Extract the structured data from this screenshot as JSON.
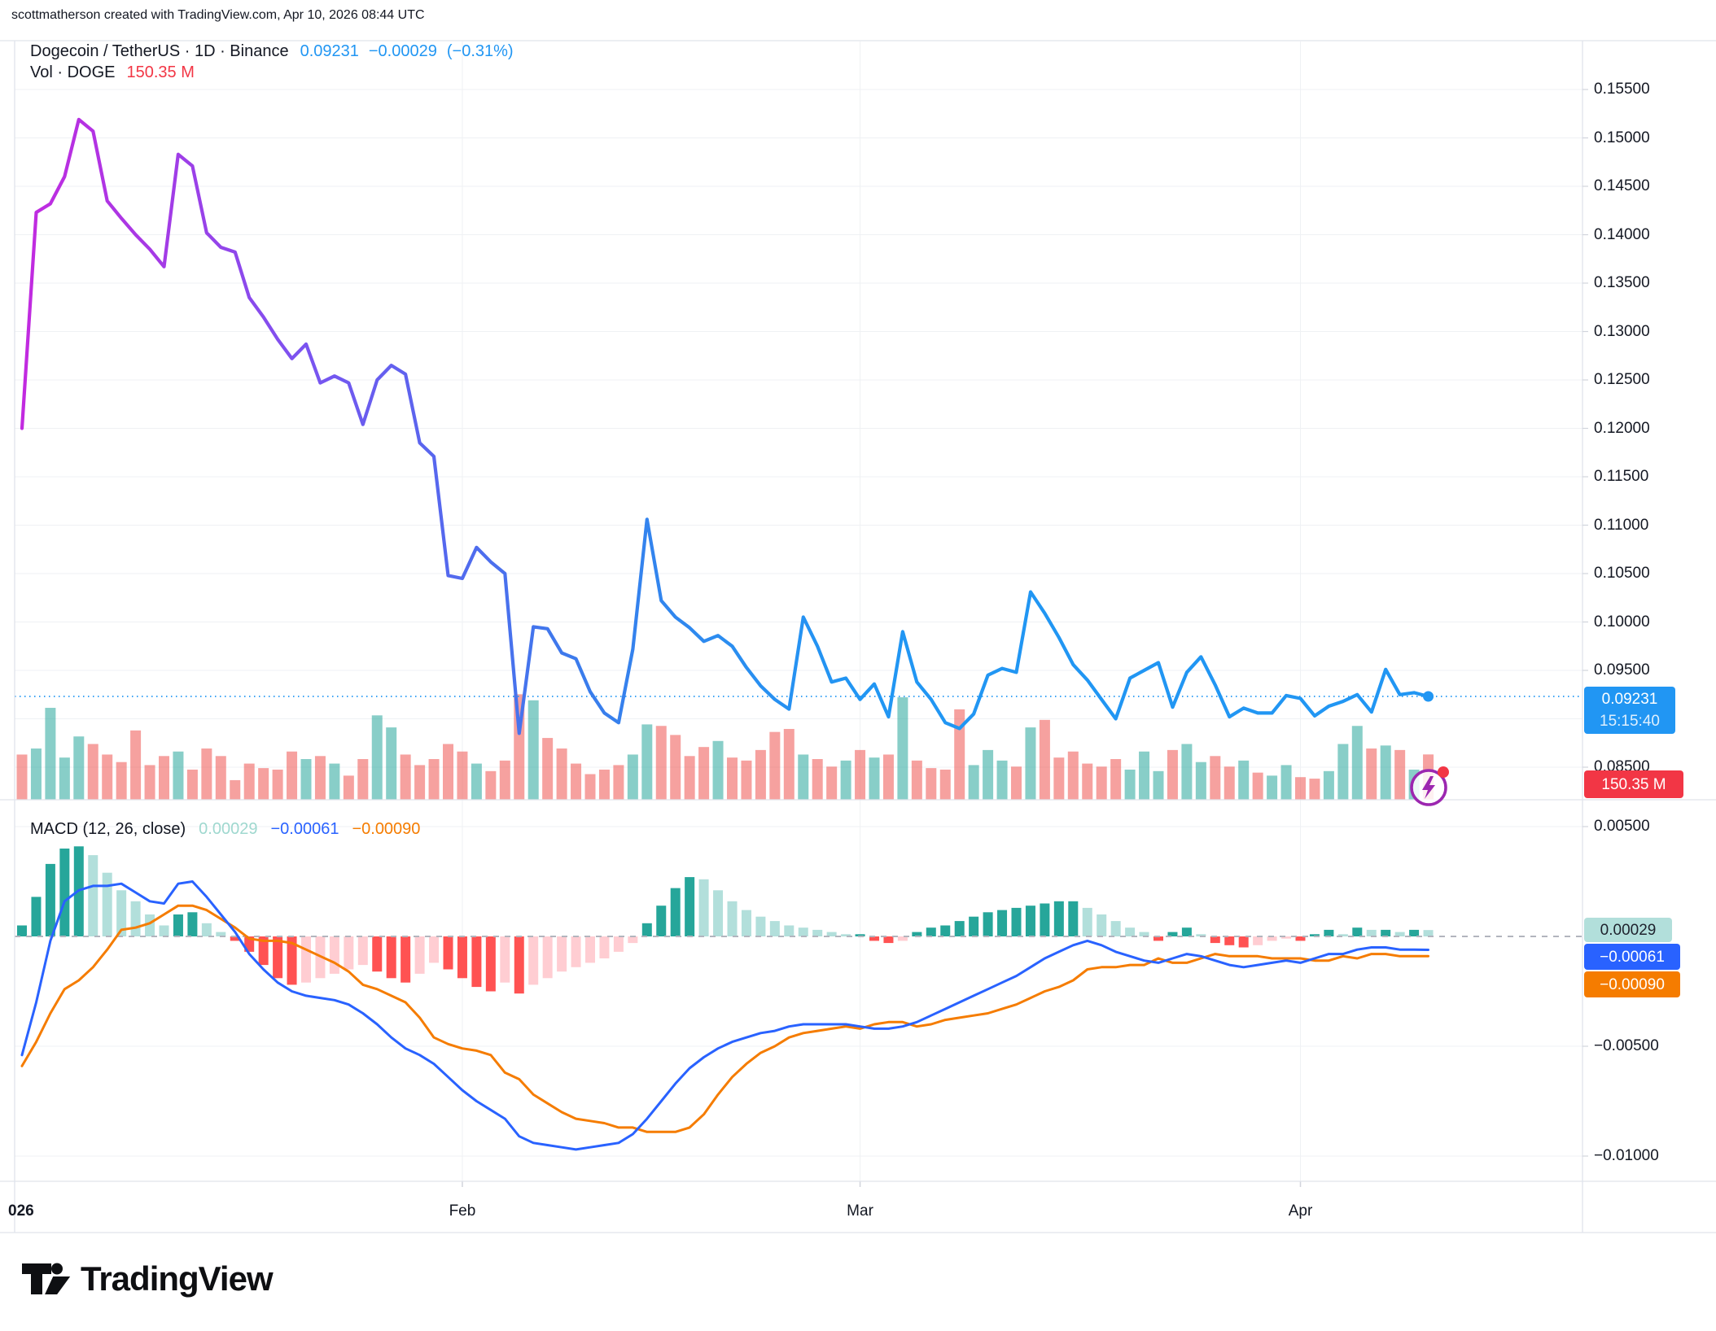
{
  "attribution": "scottmatherson created with TradingView.com, Apr 10, 2026 08:44 UTC",
  "header": {
    "title": "Dogecoin / TetherUS · 1D · Binance",
    "price": "0.09231",
    "change": "−0.00029",
    "change_pct": "(−0.31%)",
    "vol_label": "Vol · DOGE",
    "vol_value": "150.35 M"
  },
  "macd_legend": {
    "title": "MACD (12, 26, close)",
    "hist_value": "0.00029",
    "macd_value": "−0.00061",
    "signal_value": "−0.00090"
  },
  "price_scale": {
    "labels": [
      {
        "text": "0.15500",
        "v": 0.155
      },
      {
        "text": "0.15000",
        "v": 0.15
      },
      {
        "text": "0.14500",
        "v": 0.145
      },
      {
        "text": "0.14000",
        "v": 0.14
      },
      {
        "text": "0.13500",
        "v": 0.135
      },
      {
        "text": "0.13000",
        "v": 0.13
      },
      {
        "text": "0.12500",
        "v": 0.125
      },
      {
        "text": "0.12000",
        "v": 0.12
      },
      {
        "text": "0.11500",
        "v": 0.115
      },
      {
        "text": "0.11000",
        "v": 0.11
      },
      {
        "text": "0.10500",
        "v": 0.105
      },
      {
        "text": "0.10000",
        "v": 0.1
      },
      {
        "text": "0.09500",
        "v": 0.095
      },
      {
        "text": "0.08500",
        "v": 0.085
      }
    ],
    "badge": {
      "price": "0.09231",
      "countdown": "15:15:40"
    },
    "vol_badge": "150.35 M"
  },
  "macd_scale": {
    "labels": [
      {
        "text": "0.00500",
        "v": 0.005
      },
      {
        "text": "−0.00500",
        "v": -0.005
      },
      {
        "text": "−0.01000",
        "v": -0.01
      }
    ],
    "badges": {
      "hist": "0.00029",
      "macd": "−0.00061",
      "signal": "−0.00090"
    }
  },
  "time_axis": {
    "labels": [
      {
        "text": "026",
        "day": 0,
        "edge": true
      },
      {
        "text": "Feb",
        "day": 31
      },
      {
        "text": "Mar",
        "day": 59
      },
      {
        "text": "Apr",
        "day": 90
      }
    ]
  },
  "logo": {
    "text": "TradingView"
  },
  "colors": {
    "accent_blue": "#2196F3",
    "legend_red": "#F23645",
    "macd_line": "#2962FF",
    "signal_line": "#F57C00",
    "hist_grow_above": "#26A69A",
    "hist_fall_above": "#B2DFDB",
    "hist_fall_below": "#FF5252",
    "hist_grow_below": "#FFCDD2",
    "vol_up": "rgba(38,166,154,0.55)",
    "vol_down": "rgba(239,83,80,0.55)",
    "grid": "#EFF1F4",
    "border": "#E0E3EB",
    "zero_dash": "#B2B5BE",
    "line_gradient": [
      "#C22AE0",
      "#A43BE6",
      "#7B53F0",
      "#5568EE",
      "#3A7CEC",
      "#2B8DF0",
      "#2196F3"
    ],
    "watermark_purple": "#9C27B0",
    "watermark_red": "#F23645"
  },
  "chart_data": [
    {
      "type": "line",
      "name": "DOGEUSDT close",
      "title": "Dogecoin / TetherUS 1D Binance",
      "start_date": "2026-01-01",
      "interval": "1D",
      "last_value": 0.09231,
      "ylim": [
        0.084,
        0.16
      ],
      "grid": true,
      "values": [
        0.12,
        0.1423,
        0.1432,
        0.146,
        0.1519,
        0.1507,
        0.1435,
        0.1417,
        0.14,
        0.1385,
        0.1367,
        0.1483,
        0.1471,
        0.1402,
        0.1387,
        0.1382,
        0.1335,
        0.1315,
        0.1292,
        0.1272,
        0.1287,
        0.1247,
        0.1254,
        0.1247,
        0.1204,
        0.125,
        0.1265,
        0.1256,
        0.1185,
        0.1171,
        0.1048,
        0.1045,
        0.1077,
        0.1062,
        0.105,
        0.0885,
        0.0995,
        0.0993,
        0.0968,
        0.0962,
        0.0928,
        0.0906,
        0.0896,
        0.0972,
        0.1106,
        0.1022,
        0.1005,
        0.0994,
        0.098,
        0.0986,
        0.0975,
        0.0953,
        0.0934,
        0.092,
        0.091,
        0.1005,
        0.0975,
        0.0938,
        0.0942,
        0.092,
        0.0936,
        0.0902,
        0.099,
        0.0938,
        0.092,
        0.0896,
        0.089,
        0.0905,
        0.0945,
        0.0952,
        0.0948,
        0.1031,
        0.1009,
        0.0984,
        0.0956,
        0.094,
        0.092,
        0.09,
        0.0942,
        0.095,
        0.0958,
        0.0912,
        0.0948,
        0.0964,
        0.0935,
        0.0902,
        0.0911,
        0.0906,
        0.0906,
        0.0924,
        0.0921,
        0.0903,
        0.0913,
        0.0918,
        0.0925,
        0.0907,
        0.0951,
        0.0925,
        0.0927,
        0.09231
      ]
    },
    {
      "type": "bar",
      "name": "Volume DOGE (millions)",
      "last_value": 150.35,
      "values": [
        150,
        170,
        305,
        140,
        210,
        185,
        150,
        125,
        230,
        115,
        145,
        160,
        100,
        170,
        145,
        65,
        120,
        105,
        100,
        160,
        135,
        145,
        120,
        80,
        135,
        280,
        240,
        150,
        115,
        135,
        185,
        160,
        120,
        95,
        130,
        350,
        330,
        205,
        170,
        120,
        85,
        100,
        115,
        150,
        250,
        245,
        215,
        145,
        175,
        195,
        140,
        130,
        165,
        225,
        235,
        150,
        135,
        110,
        130,
        165,
        140,
        150,
        340,
        130,
        105,
        100,
        300,
        115,
        165,
        130,
        110,
        240,
        265,
        140,
        160,
        120,
        110,
        135,
        100,
        160,
        95,
        165,
        185,
        125,
        145,
        110,
        130,
        90,
        80,
        115,
        75,
        70,
        95,
        185,
        245,
        170,
        180,
        165,
        100,
        150.35
      ]
    },
    {
      "type": "line",
      "name": "MACD (12, 26, close)",
      "ylim": [
        -0.0112,
        0.0062
      ],
      "series": [
        {
          "name": "MACD",
          "values": [
            -0.0054,
            -0.003,
            -0.0002,
            0.0016,
            0.0021,
            0.0023,
            0.0023,
            0.0024,
            0.002,
            0.0016,
            0.0015,
            0.0024,
            0.0025,
            0.0018,
            0.001,
            0.0002,
            -0.0008,
            -0.0015,
            -0.0021,
            -0.0025,
            -0.0027,
            -0.0028,
            -0.0029,
            -0.0031,
            -0.0035,
            -0.004,
            -0.0046,
            -0.0051,
            -0.0054,
            -0.0058,
            -0.0064,
            -0.007,
            -0.0075,
            -0.0079,
            -0.0083,
            -0.0091,
            -0.0094,
            -0.0095,
            -0.0096,
            -0.0097,
            -0.0096,
            -0.0095,
            -0.0094,
            -0.009,
            -0.0083,
            -0.0075,
            -0.0067,
            -0.006,
            -0.0055,
            -0.0051,
            -0.0048,
            -0.0046,
            -0.0044,
            -0.0043,
            -0.0041,
            -0.004,
            -0.004,
            -0.004,
            -0.004,
            -0.0041,
            -0.0042,
            -0.0042,
            -0.0041,
            -0.0039,
            -0.0036,
            -0.0033,
            -0.003,
            -0.0027,
            -0.0024,
            -0.0021,
            -0.0018,
            -0.0014,
            -0.001,
            -0.0007,
            -0.0004,
            -0.0002,
            -0.0004,
            -0.0007,
            -0.0009,
            -0.0011,
            -0.0012,
            -0.001,
            -0.0008,
            -0.0009,
            -0.0011,
            -0.0013,
            -0.0014,
            -0.0013,
            -0.0012,
            -0.0011,
            -0.0012,
            -0.001,
            -0.0008,
            -0.0008,
            -0.0006,
            -0.0005,
            -0.0005,
            -0.0006,
            -0.0006,
            -0.00061
          ]
        },
        {
          "name": "Signal",
          "values": [
            -0.0059,
            -0.0048,
            -0.0035,
            -0.0024,
            -0.002,
            -0.0014,
            -0.0006,
            0.0003,
            0.0004,
            0.0006,
            0.001,
            0.0014,
            0.0014,
            0.0012,
            0.0008,
            0.0004,
            -0.0001,
            -0.0002,
            -0.0002,
            -0.0003,
            -0.0006,
            -0.0009,
            -0.0012,
            -0.0016,
            -0.0022,
            -0.0024,
            -0.0027,
            -0.003,
            -0.0037,
            -0.0046,
            -0.0049,
            -0.0051,
            -0.0052,
            -0.0054,
            -0.0062,
            -0.0065,
            -0.0072,
            -0.0076,
            -0.008,
            -0.0083,
            -0.0084,
            -0.0085,
            -0.0087,
            -0.0087,
            -0.0089,
            -0.0089,
            -0.0089,
            -0.0087,
            -0.0081,
            -0.0072,
            -0.0064,
            -0.0058,
            -0.0053,
            -0.005,
            -0.0046,
            -0.0044,
            -0.0043,
            -0.0042,
            -0.0041,
            -0.0042,
            -0.004,
            -0.0039,
            -0.0039,
            -0.0041,
            -0.004,
            -0.0038,
            -0.0037,
            -0.0036,
            -0.0035,
            -0.0033,
            -0.0031,
            -0.0028,
            -0.0025,
            -0.0023,
            -0.002,
            -0.0015,
            -0.0014,
            -0.0014,
            -0.0013,
            -0.0013,
            -0.001,
            -0.0012,
            -0.0012,
            -0.001,
            -0.0008,
            -0.0009,
            -0.0009,
            -0.0009,
            -0.001,
            -0.001,
            -0.001,
            -0.0011,
            -0.0011,
            -0.0009,
            -0.001,
            -0.0008,
            -0.0008,
            -0.0009,
            -0.0009,
            -0.0009
          ]
        },
        {
          "name": "Histogram",
          "values": [
            0.0005,
            0.0018,
            0.0033,
            0.004,
            0.0041,
            0.0037,
            0.0029,
            0.0021,
            0.0016,
            0.001,
            0.0005,
            0.001,
            0.0011,
            0.0006,
            0.0002,
            -0.0002,
            -0.0007,
            -0.0013,
            -0.0019,
            -0.0022,
            -0.0021,
            -0.0019,
            -0.0017,
            -0.0015,
            -0.0013,
            -0.0016,
            -0.0019,
            -0.0021,
            -0.0017,
            -0.0012,
            -0.0015,
            -0.0019,
            -0.0023,
            -0.0025,
            -0.0021,
            -0.0026,
            -0.0022,
            -0.0019,
            -0.0016,
            -0.0014,
            -0.0012,
            -0.001,
            -0.0007,
            -0.0003,
            0.0006,
            0.0014,
            0.0022,
            0.0027,
            0.0026,
            0.0021,
            0.0016,
            0.0012,
            0.0009,
            0.0007,
            0.0005,
            0.0004,
            0.0003,
            0.0002,
            0.0001,
            0.0001,
            -0.0002,
            -0.0003,
            -0.0002,
            0.0002,
            0.0004,
            0.0005,
            0.0007,
            0.0009,
            0.0011,
            0.0012,
            0.0013,
            0.0014,
            0.0015,
            0.0016,
            0.0016,
            0.0013,
            0.001,
            0.0007,
            0.0004,
            0.0002,
            -0.0002,
            0.0002,
            0.0004,
            0.0001,
            -0.0003,
            -0.0004,
            -0.0005,
            -0.0004,
            -0.0002,
            -0.0001,
            -0.0002,
            0.0001,
            0.0003,
            0.0001,
            0.0004,
            0.0003,
            0.0003,
            0.0002,
            0.0003,
            0.00029
          ]
        }
      ]
    }
  ]
}
